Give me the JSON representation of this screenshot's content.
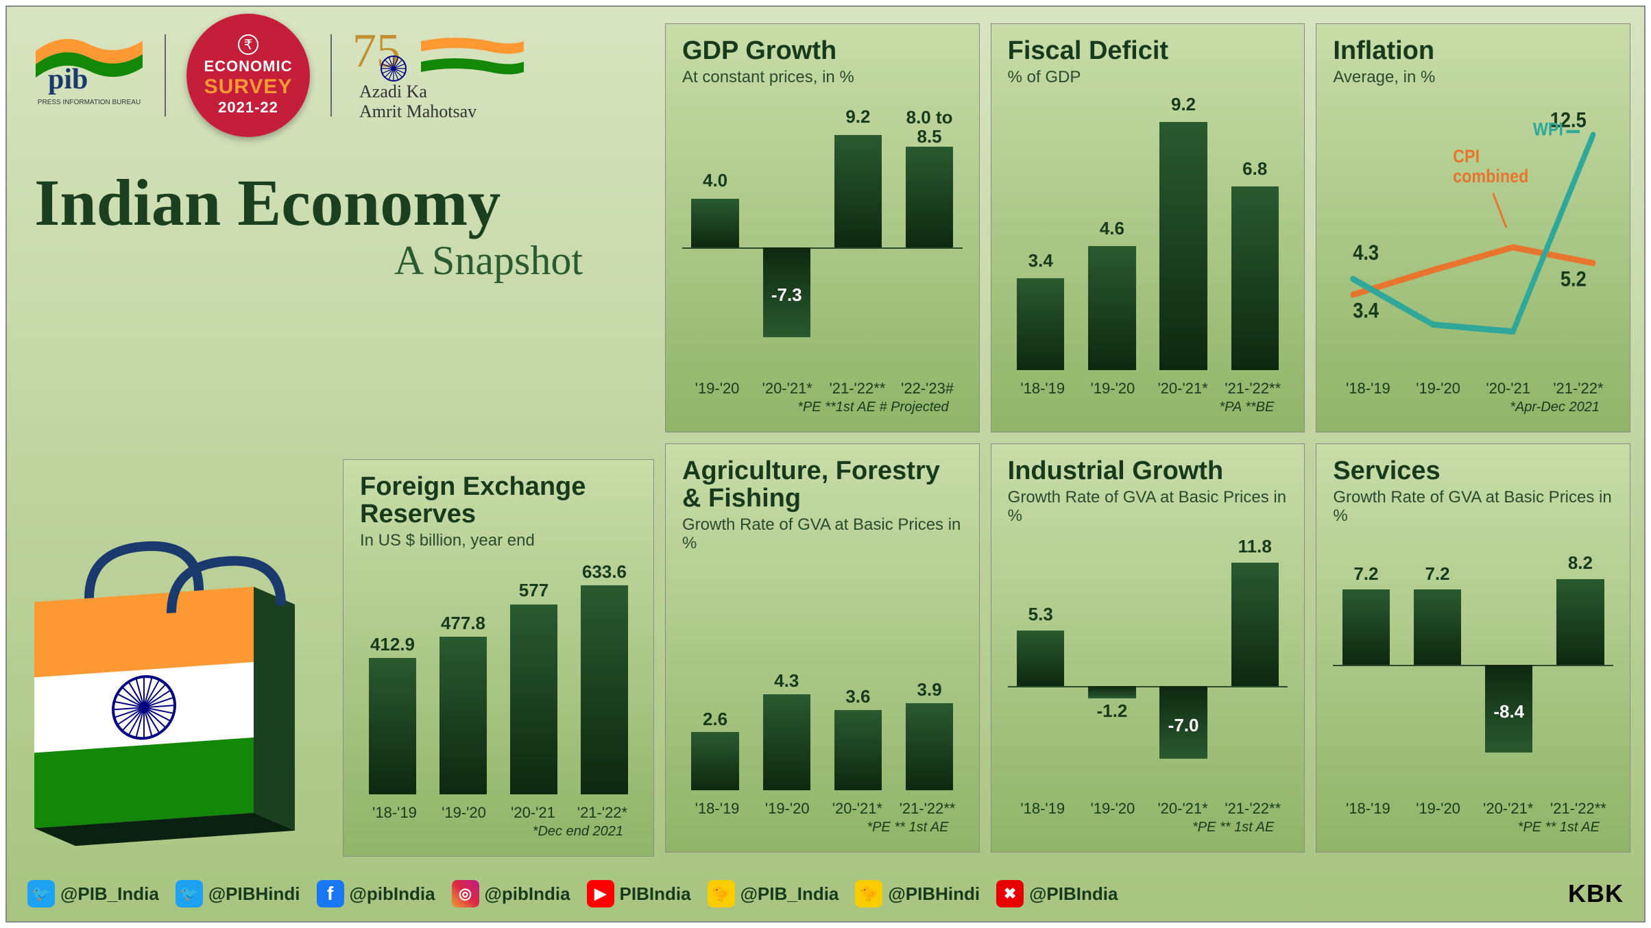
{
  "header": {
    "pib": {
      "abbr": "pib",
      "sub": "PRESS INFORMATION BUREAU"
    },
    "survey": {
      "l1": "ECONOMIC",
      "l2": "SURVEY",
      "l3": "2021-22",
      "rupee": "₹"
    },
    "azadi": {
      "num": "75",
      "line": "Azadi Ka\nAmrit Mahotsav"
    }
  },
  "title": {
    "line1": "Indian Economy",
    "line2": "A Snapshot"
  },
  "colors": {
    "saffron": "#ff9933",
    "white": "#ffffff",
    "green": "#138808",
    "navy": "#000080",
    "bar_dark": "#0e2810",
    "bar_top": "#2a5a30",
    "title_color": "#183a1c",
    "panel_border": "#8a8a8a",
    "cpi_line": "#e8752d",
    "wpi_line": "#2fa89a"
  },
  "panels": {
    "gdp": {
      "title": "GDP Growth",
      "sub": "At constant prices, in %",
      "type": "bar",
      "has_negative": true,
      "ylim": [
        -10,
        12
      ],
      "categories": [
        "'19-'20",
        "'20-'21*",
        "'21-'22**",
        "'22-'23#"
      ],
      "values": [
        4.0,
        -7.3,
        9.2,
        8.25
      ],
      "display_labels": [
        "4.0",
        "-7.3",
        "9.2",
        "8.0 to\n8.5"
      ],
      "footnote": "*PE   **1st AE   # Projected"
    },
    "fiscal": {
      "title": "Fiscal Deficit",
      "sub": "% of GDP",
      "type": "bar",
      "has_negative": false,
      "ylim": [
        0,
        10
      ],
      "categories": [
        "'18-'19",
        "'19-'20",
        "'20-'21*",
        "'21-'22**"
      ],
      "values": [
        3.4,
        4.6,
        9.2,
        6.8
      ],
      "display_labels": [
        "3.4",
        "4.6",
        "9.2",
        "6.8"
      ],
      "footnote": "*PA **BE"
    },
    "inflation": {
      "title": "Inflation",
      "sub": "Average, in %",
      "type": "line",
      "categories": [
        "'18-'19",
        "'19-'20",
        "'20-'21",
        "'21-'22*"
      ],
      "ylim": [
        0,
        14
      ],
      "series": [
        {
          "name": "CPI combined",
          "color": "#e8752d",
          "values": [
            3.4,
            4.8,
            6.1,
            5.2
          ],
          "label_idx": 1
        },
        {
          "name": "WPI",
          "color": "#2fa89a",
          "values": [
            4.3,
            1.7,
            1.3,
            12.5
          ],
          "label_idx": 2
        }
      ],
      "point_labels": [
        {
          "text": "4.3",
          "x_idx": 0,
          "y": 4.3,
          "dy": -25
        },
        {
          "text": "3.4",
          "x_idx": 0,
          "y": 3.4,
          "dy": 30
        },
        {
          "text": "12.5",
          "x_idx": 3,
          "y": 12.5,
          "dy": -10
        },
        {
          "text": "5.2",
          "x_idx": 3,
          "y": 5.2,
          "dy": 30
        }
      ],
      "series_labels": [
        {
          "text": "WPI",
          "color": "#2fa89a",
          "x": 300,
          "y": 55
        },
        {
          "text": "CPI\ncombined",
          "color": "#e8752d",
          "x": 180,
          "y": 90
        }
      ],
      "footnote": "*Apr-Dec 2021"
    },
    "forex": {
      "title": "Foreign Exchange Reserves",
      "sub": "In US $ billion, year end",
      "type": "bar",
      "has_negative": false,
      "ylim": [
        0,
        700
      ],
      "categories": [
        "'18-'19",
        "'19-'20",
        "'20-'21",
        "'21-'22*"
      ],
      "values": [
        412.9,
        477.8,
        577,
        633.6
      ],
      "display_labels": [
        "412.9",
        "477.8",
        "577",
        "633.6"
      ],
      "footnote": "*Dec end 2021"
    },
    "agri": {
      "title": "Agriculture, Forestry & Fishing",
      "sub": "Growth Rate of GVA at Basic Prices in %",
      "type": "bar",
      "has_negative": false,
      "ylim": [
        0,
        10
      ],
      "categories": [
        "'18-'19",
        "'19-'20",
        "'20-'21*",
        "'21-'22**"
      ],
      "values": [
        2.6,
        4.3,
        3.6,
        3.9
      ],
      "display_labels": [
        "2.6",
        "4.3",
        "3.6",
        "3.9"
      ],
      "footnote": "*PE  ** 1st AE"
    },
    "industrial": {
      "title": "Industrial Growth",
      "sub": "Growth Rate of GVA at Basic Prices in %",
      "type": "bar",
      "has_negative": true,
      "ylim": [
        -10,
        14
      ],
      "categories": [
        "'18-'19",
        "'19-'20",
        "'20-'21*",
        "'21-'22**"
      ],
      "values": [
        5.3,
        -1.2,
        -7.0,
        11.8
      ],
      "display_labels": [
        "5.3",
        "-1.2",
        "-7.0",
        "11.8"
      ],
      "footnote": "*PE  ** 1st AE"
    },
    "services": {
      "title": "Services",
      "sub": "Growth Rate of GVA at Basic Prices in %",
      "type": "bar",
      "has_negative": true,
      "ylim": [
        -12,
        12
      ],
      "categories": [
        "'18-'19",
        "'19-'20",
        "'20-'21*",
        "'21-'22**"
      ],
      "values": [
        7.2,
        7.2,
        -8.4,
        8.2
      ],
      "display_labels": [
        "7.2",
        "7.2",
        "-8.4",
        "8.2"
      ],
      "footnote": "*PE  ** 1st AE"
    }
  },
  "footer": {
    "items": [
      {
        "icon": "twitter",
        "bg": "#1da1f2",
        "handle": "@PIB_India"
      },
      {
        "icon": "twitter",
        "bg": "#1da1f2",
        "handle": "@PIBHindi"
      },
      {
        "icon": "facebook",
        "bg": "#1877f2",
        "handle": "@pibIndia"
      },
      {
        "icon": "instagram",
        "bg": "linear-gradient(45deg,#f09433,#e6683c,#dc2743,#cc2366,#bc1888)",
        "handle": "@pibIndia"
      },
      {
        "icon": "youtube",
        "bg": "#ff0000",
        "handle": "PIBIndia"
      },
      {
        "icon": "koo",
        "bg": "#facd00",
        "handle": "@PIB_India"
      },
      {
        "icon": "koo",
        "bg": "#facd00",
        "handle": "@PIBHindi"
      },
      {
        "icon": "other",
        "bg": "#e60000",
        "handle": "@PIBIndia"
      }
    ],
    "credit": "KBK"
  }
}
